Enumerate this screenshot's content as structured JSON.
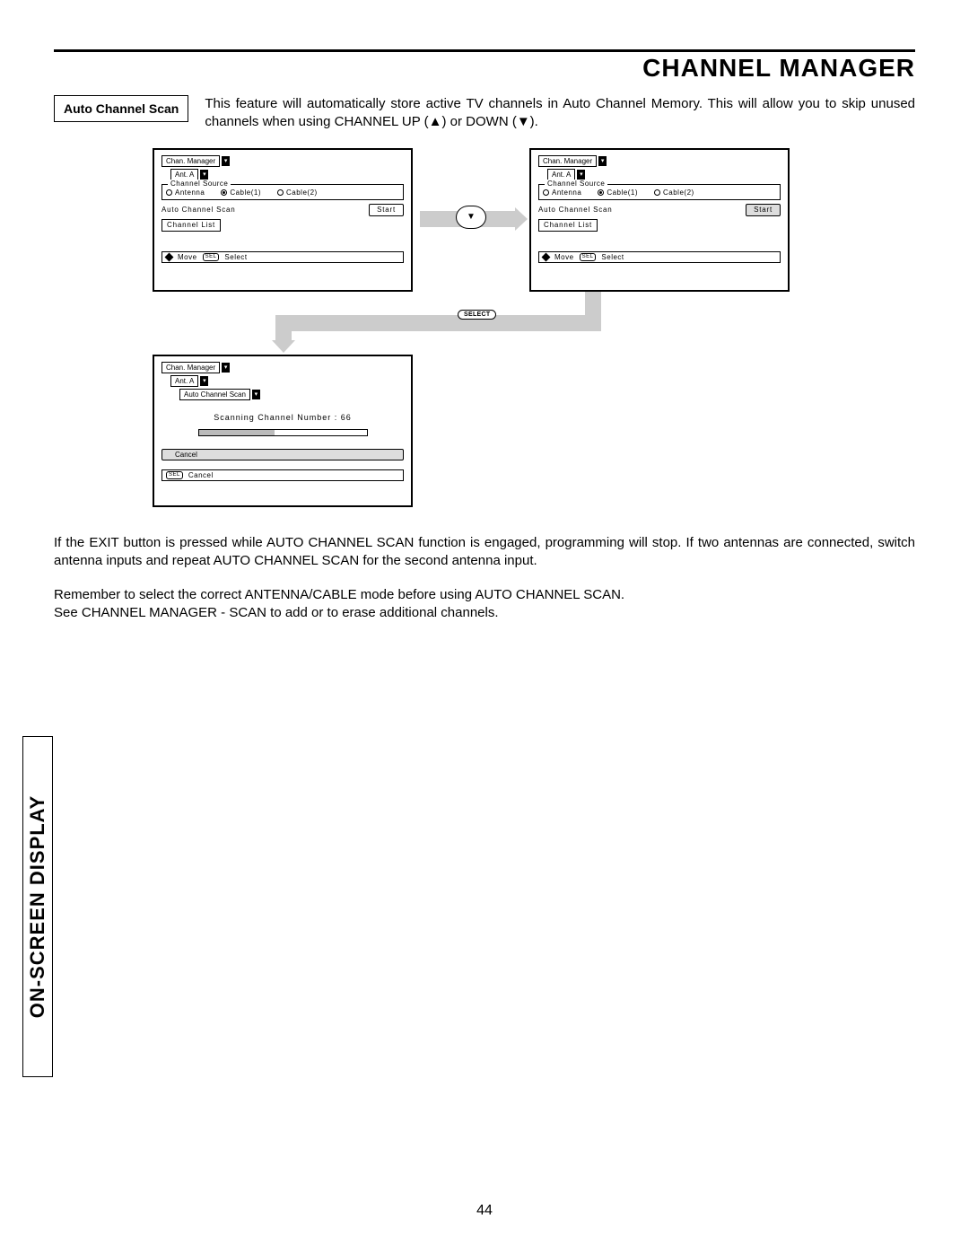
{
  "page_title": "CHANNEL MANAGER",
  "side_tab": "ON-SCREEN DISPLAY",
  "page_number": "44",
  "section": {
    "label": "Auto Channel Scan",
    "description": "This feature will automatically store active TV channels in Auto Channel Memory.  This will allow you to skip unused channels when using CHANNEL UP (▲) or DOWN (▼)."
  },
  "screens": {
    "common": {
      "crumb1": "Chan. Manager",
      "crumb2": "Ant. A",
      "source_legend": "Channel Source",
      "radios": {
        "antenna": "Antenna",
        "cable1": "Cable(1)",
        "cable2": "Cable(2)"
      },
      "auto_scan_label": "Auto Channel Scan",
      "start_btn": "Start",
      "channel_list": "Channel List",
      "footer_move": "Move",
      "footer_sel": "SEL",
      "footer_select": "Select"
    },
    "scan": {
      "crumb3": "Auto Channel Scan",
      "scanning_label": "Scanning Channel Number :",
      "scanning_value": "66",
      "progress_pct": 45,
      "cancel": "Cancel",
      "footer_cancel": "Cancel"
    }
  },
  "remote": {
    "down": "▼",
    "select": "SELECT"
  },
  "body": {
    "p1": "If the EXIT button is pressed while AUTO CHANNEL SCAN function is engaged, programming will stop.  If two antennas are connected, switch antenna inputs and repeat AUTO CHANNEL SCAN for the second antenna input.",
    "p2": "Remember to select the correct ANTENNA/CABLE mode before using AUTO CHANNEL SCAN.",
    "p3": "See CHANNEL MANAGER - SCAN to add or to erase additional channels."
  },
  "colors": {
    "arrow": "#cccccc",
    "shaded": "#dddddd"
  }
}
